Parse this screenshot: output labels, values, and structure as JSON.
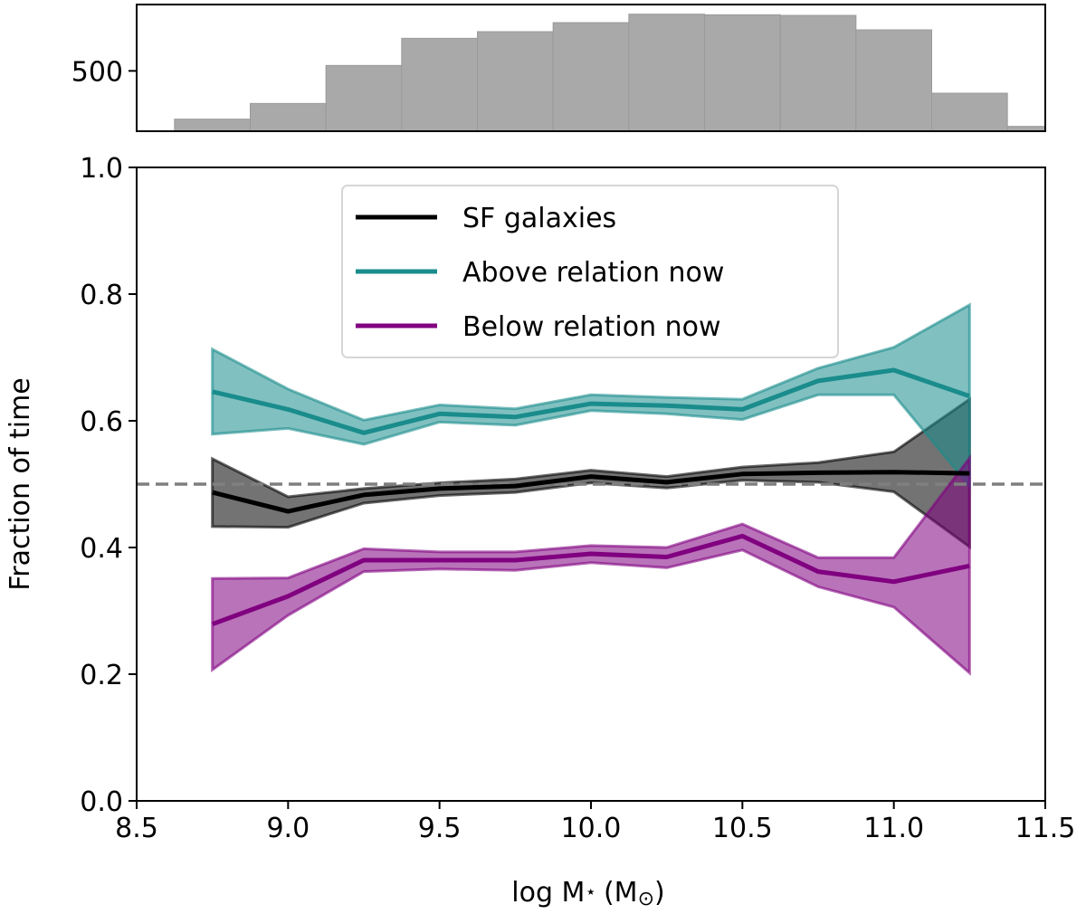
{
  "chart_data": [
    {
      "type": "bar",
      "name": "mass-histogram",
      "bin_edges": [
        8.625,
        8.875,
        9.125,
        9.375,
        9.625,
        9.875,
        10.125,
        10.375,
        10.625,
        10.875,
        11.125,
        11.375,
        11.625
      ],
      "values": [
        100,
        230,
        545,
        770,
        825,
        900,
        970,
        965,
        960,
        840,
        315,
        40
      ],
      "xlim": [
        8.5,
        11.5
      ],
      "ylim": [
        0,
        1050
      ],
      "yticks": [
        {
          "v": 500,
          "label": "500"
        }
      ],
      "color": "#a9a9a9"
    },
    {
      "type": "line",
      "name": "fraction-of-time",
      "title": "",
      "xlabel": "log M",
      "xlabel_sub": "⋆",
      "xlabel_unit_open": "(M",
      "xlabel_unit_sub": "⊙",
      "xlabel_unit_close": ")",
      "ylabel": "Fraction of time",
      "xlim": [
        8.5,
        11.5
      ],
      "ylim": [
        0.0,
        1.0
      ],
      "xticks": [
        {
          "v": 8.5,
          "label": "8.5"
        },
        {
          "v": 9.0,
          "label": "9.0"
        },
        {
          "v": 9.5,
          "label": "9.5"
        },
        {
          "v": 10.0,
          "label": "10.0"
        },
        {
          "v": 10.5,
          "label": "10.5"
        },
        {
          "v": 11.0,
          "label": "11.0"
        },
        {
          "v": 11.5,
          "label": "11.5"
        }
      ],
      "yticks": [
        {
          "v": 0.0,
          "label": "0.0"
        },
        {
          "v": 0.2,
          "label": "0.2"
        },
        {
          "v": 0.4,
          "label": "0.4"
        },
        {
          "v": 0.6,
          "label": "0.6"
        },
        {
          "v": 0.8,
          "label": "0.8"
        },
        {
          "v": 1.0,
          "label": "1.0"
        }
      ],
      "reference_line": {
        "y": 0.5,
        "style": "dashed",
        "color": "#7f7f7f"
      },
      "x": [
        8.75,
        9.0,
        9.25,
        9.5,
        9.75,
        10.0,
        10.25,
        10.5,
        10.75,
        11.0,
        11.25
      ],
      "series": [
        {
          "name": "SF galaxies",
          "color": "#000000",
          "values": [
            0.487,
            0.457,
            0.483,
            0.493,
            0.497,
            0.512,
            0.503,
            0.516,
            0.518,
            0.519,
            0.517
          ],
          "lower": [
            0.433,
            0.432,
            0.47,
            0.482,
            0.487,
            0.502,
            0.494,
            0.506,
            0.503,
            0.488,
            0.401
          ],
          "upper": [
            0.54,
            0.48,
            0.493,
            0.502,
            0.508,
            0.522,
            0.512,
            0.527,
            0.534,
            0.551,
            0.634
          ]
        },
        {
          "name": "Above relation now",
          "color": "#1a8c8c",
          "values": [
            0.646,
            0.618,
            0.581,
            0.611,
            0.606,
            0.627,
            0.624,
            0.618,
            0.663,
            0.68,
            0.639
          ],
          "lower": [
            0.579,
            0.588,
            0.563,
            0.598,
            0.593,
            0.616,
            0.611,
            0.602,
            0.641,
            0.641,
            0.497
          ],
          "upper": [
            0.713,
            0.65,
            0.601,
            0.625,
            0.619,
            0.641,
            0.637,
            0.634,
            0.683,
            0.716,
            0.783
          ]
        },
        {
          "name": "Below relation now",
          "color": "#800080",
          "values": [
            0.279,
            0.323,
            0.38,
            0.38,
            0.38,
            0.39,
            0.385,
            0.418,
            0.362,
            0.346,
            0.371
          ],
          "lower": [
            0.207,
            0.293,
            0.362,
            0.366,
            0.364,
            0.376,
            0.368,
            0.396,
            0.338,
            0.306,
            0.202
          ],
          "upper": [
            0.351,
            0.352,
            0.398,
            0.393,
            0.393,
            0.403,
            0.4,
            0.437,
            0.384,
            0.384,
            0.541
          ]
        }
      ],
      "legend": {
        "location": "upper center",
        "entries": [
          "SF galaxies",
          "Above relation now",
          "Below relation now"
        ]
      }
    }
  ]
}
